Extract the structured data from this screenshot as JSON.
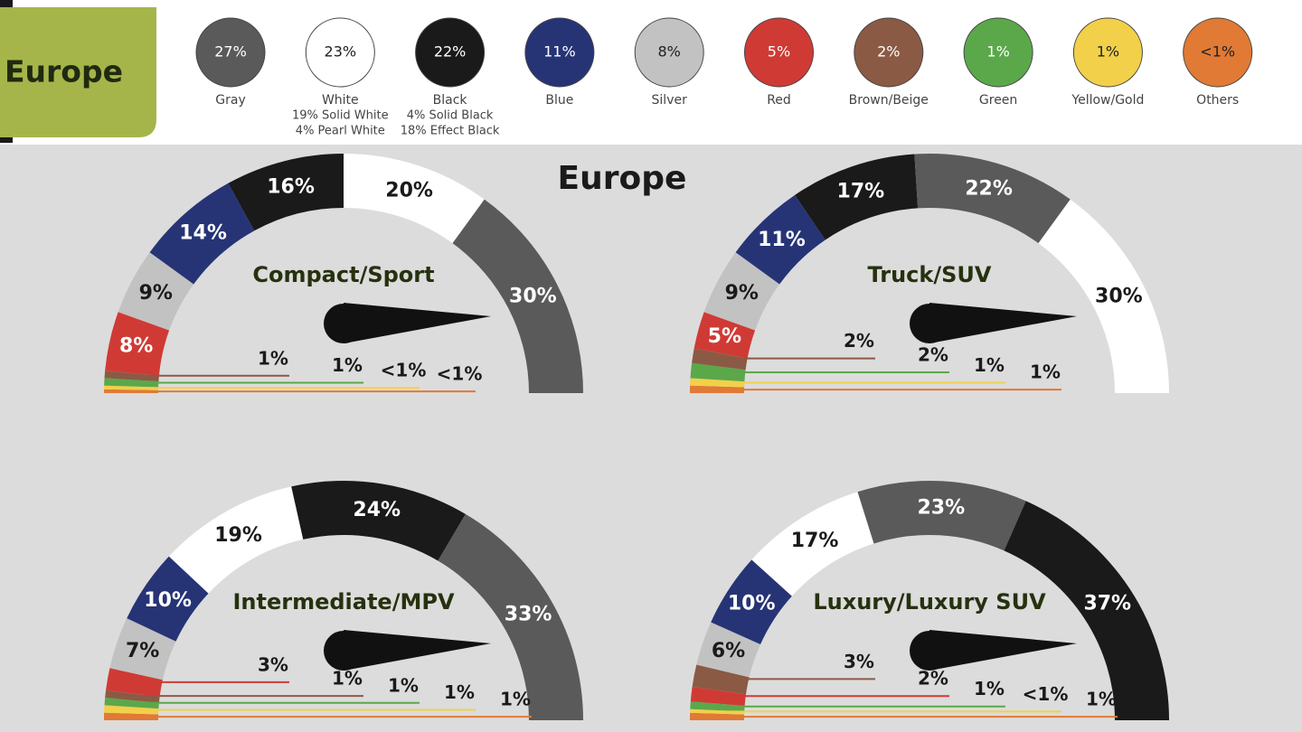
{
  "header": {
    "label": "Europe"
  },
  "title": "Europe",
  "chart_data": [
    {
      "type": "swatches",
      "categories": [
        "Gray",
        "White",
        "Black",
        "Blue",
        "Silver",
        "Red",
        "Brown/Beige",
        "Green",
        "Yellow/Gold",
        "Others"
      ],
      "values": [
        27,
        23,
        22,
        11,
        8,
        5,
        2,
        1,
        1,
        0.5
      ],
      "value_labels": [
        "27%",
        "23%",
        "22%",
        "11%",
        "8%",
        "5%",
        "2%",
        "1%",
        "1%",
        "<1%"
      ],
      "colors": [
        "#5a5a5a",
        "#ffffff",
        "#1a1a1a",
        "#263476",
        "#c2c2c2",
        "#d03a35",
        "#8b5a44",
        "#5aa84a",
        "#f2d04a",
        "#e07a35"
      ],
      "details": [
        [],
        [
          "19% Solid White",
          "4% Pearl White"
        ],
        [
          "4% Solid Black",
          "18% Effect Black"
        ],
        [],
        [],
        [],
        [],
        [],
        [],
        []
      ]
    },
    {
      "type": "gauge",
      "title": "Compact/Sport",
      "categories": [
        "Others",
        "Yellow/Gold",
        "Green",
        "Brown/Beige",
        "Red",
        "Silver",
        "Blue",
        "Black",
        "White",
        "Gray"
      ],
      "values": [
        0.5,
        0.5,
        1,
        1,
        8,
        9,
        14,
        16,
        20,
        30
      ],
      "value_labels": [
        "<1%",
        "<1%",
        "1%",
        "1%",
        "8%",
        "9%",
        "14%",
        "16%",
        "20%",
        "30%"
      ],
      "colors": [
        "#e07a35",
        "#f2d04a",
        "#5aa84a",
        "#8b5a44",
        "#d03a35",
        "#c2c2c2",
        "#263476",
        "#1a1a1a",
        "#ffffff",
        "#5a5a5a"
      ]
    },
    {
      "type": "gauge",
      "title": "Truck/SUV",
      "categories": [
        "Others",
        "Yellow/Gold",
        "Green",
        "Brown/Beige",
        "Red",
        "Silver",
        "Blue",
        "Black",
        "Gray",
        "White"
      ],
      "values": [
        1,
        1,
        2,
        2,
        5,
        9,
        11,
        17,
        22,
        30
      ],
      "value_labels": [
        "1%",
        "1%",
        "2%",
        "2%",
        "5%",
        "9%",
        "11%",
        "17%",
        "22%",
        "30%"
      ],
      "colors": [
        "#e07a35",
        "#f2d04a",
        "#5aa84a",
        "#8b5a44",
        "#d03a35",
        "#c2c2c2",
        "#263476",
        "#1a1a1a",
        "#5a5a5a",
        "#ffffff"
      ]
    },
    {
      "type": "gauge",
      "title": "Intermediate/MPV",
      "categories": [
        "Others",
        "Yellow/Gold",
        "Green",
        "Brown/Beige",
        "Red",
        "Silver",
        "Blue",
        "White",
        "Black",
        "Gray"
      ],
      "values": [
        1,
        1,
        1,
        1,
        3,
        7,
        10,
        19,
        24,
        33
      ],
      "value_labels": [
        "1%",
        "1%",
        "1%",
        "1%",
        "3%",
        "7%",
        "10%",
        "19%",
        "24%",
        "33%"
      ],
      "colors": [
        "#e07a35",
        "#f2d04a",
        "#5aa84a",
        "#8b5a44",
        "#d03a35",
        "#c2c2c2",
        "#263476",
        "#ffffff",
        "#1a1a1a",
        "#5a5a5a"
      ]
    },
    {
      "type": "gauge",
      "title": "Luxury/Luxury SUV",
      "categories": [
        "Others",
        "Yellow/Gold",
        "Green",
        "Red",
        "Brown/Beige",
        "Silver",
        "Blue",
        "White",
        "Gray",
        "Black"
      ],
      "values": [
        1,
        0.5,
        1,
        2,
        3,
        6,
        10,
        17,
        23,
        37
      ],
      "value_labels": [
        "1%",
        "<1%",
        "1%",
        "2%",
        "3%",
        "6%",
        "10%",
        "17%",
        "23%",
        "37%"
      ],
      "colors": [
        "#e07a35",
        "#f2d04a",
        "#5aa84a",
        "#d03a35",
        "#8b5a44",
        "#c2c2c2",
        "#263476",
        "#ffffff",
        "#5a5a5a",
        "#1a1a1a"
      ]
    }
  ]
}
